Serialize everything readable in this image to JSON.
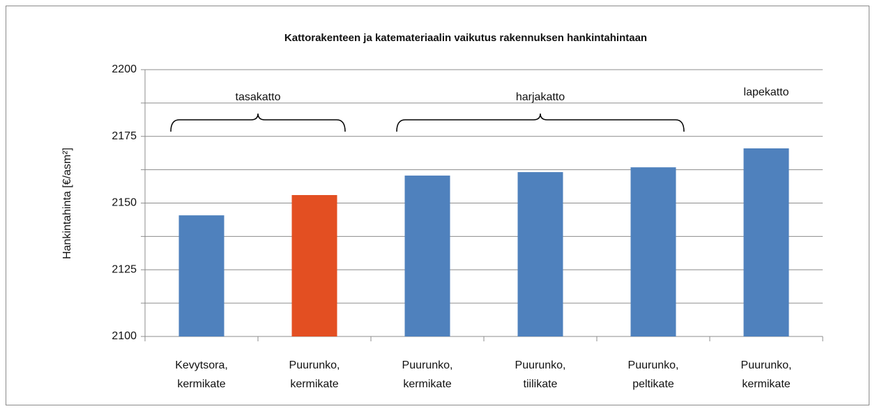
{
  "chart_data": {
    "type": "bar",
    "title": "Kattorakenteen ja katemateriaalin vaikutus rakennuksen hankintahintaan",
    "y_label": "Hankintahinta [€/asm²]",
    "categories": [
      [
        "Kevytsora,",
        "kermikate"
      ],
      [
        "Puurunko,",
        "kermikate"
      ],
      [
        "Puurunko,",
        "kermikate"
      ],
      [
        "Puurunko,",
        "tiilikate"
      ],
      [
        "Puurunko,",
        "peltikate"
      ],
      [
        "Puurunko,",
        "kermikate"
      ]
    ],
    "values": [
      2145.4,
      2153,
      2160.3,
      2161.6,
      2163.4,
      2170.5
    ],
    "colors": [
      "#4f81bd",
      "#e34f22",
      "#4f81bd",
      "#4f81bd",
      "#4f81bd",
      "#4f81bd"
    ],
    "ylim": [
      2100,
      2200
    ],
    "yticks": [
      2100,
      2125,
      2150,
      2175,
      2200
    ],
    "minor_yticks": [
      2112.5,
      2137.5,
      2162.5,
      2187.5
    ],
    "grid": true,
    "groups": [
      {
        "label": "tasakatto",
        "from": 0,
        "to": 1,
        "brace": true
      },
      {
        "label": "harjakatto",
        "from": 2,
        "to": 4,
        "brace": true
      },
      {
        "label": "lapekatto",
        "from": 5,
        "to": 5,
        "brace": false
      }
    ]
  }
}
